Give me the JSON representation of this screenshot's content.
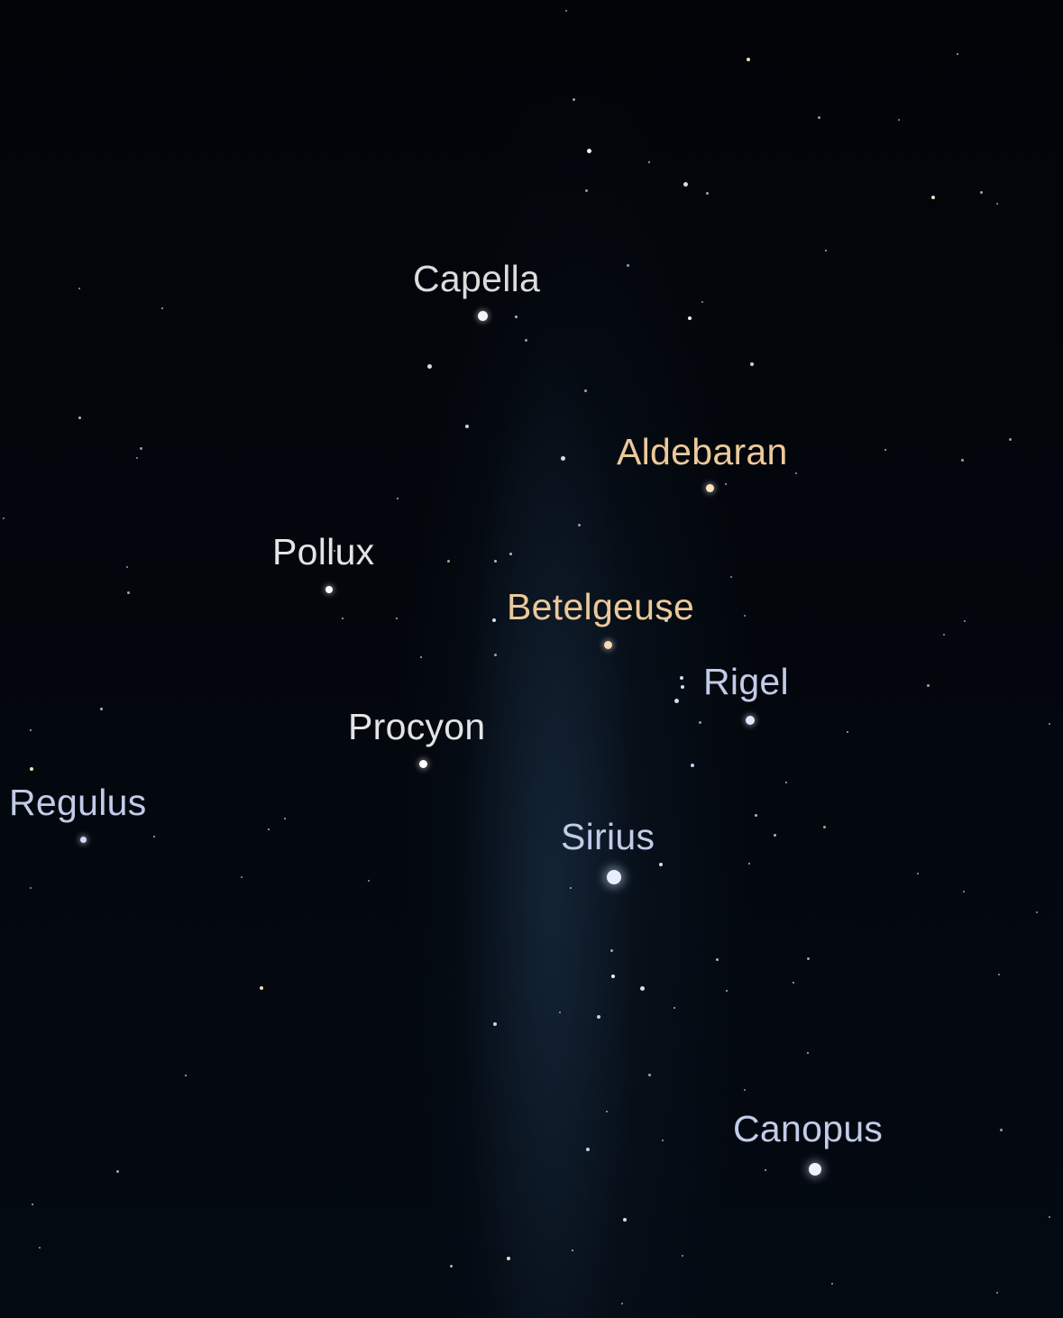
{
  "stars": [
    {
      "name": "Capella",
      "color": "#dcdcdc",
      "dot": "#f4f4f4"
    },
    {
      "name": "Aldebaran",
      "color": "#ecc99a",
      "dot": "#ffe2b8"
    },
    {
      "name": "Pollux",
      "color": "#e4e4e4",
      "dot": "#ffffff"
    },
    {
      "name": "Betelgeuse",
      "color": "#ecc99a",
      "dot": "#ffd9b0"
    },
    {
      "name": "Rigel",
      "color": "#c2cbe8",
      "dot": "#dfe6ff"
    },
    {
      "name": "Procyon",
      "color": "#e4e4e4",
      "dot": "#ffffff"
    },
    {
      "name": "Regulus",
      "color": "#c2cbe8",
      "dot": "#cfd8ff"
    },
    {
      "name": "Sirius",
      "color": "#c2cbe8",
      "dot": "#e8eeff"
    },
    {
      "name": "Canopus",
      "color": "#c2cbe8",
      "dot": "#eef2ff"
    }
  ]
}
